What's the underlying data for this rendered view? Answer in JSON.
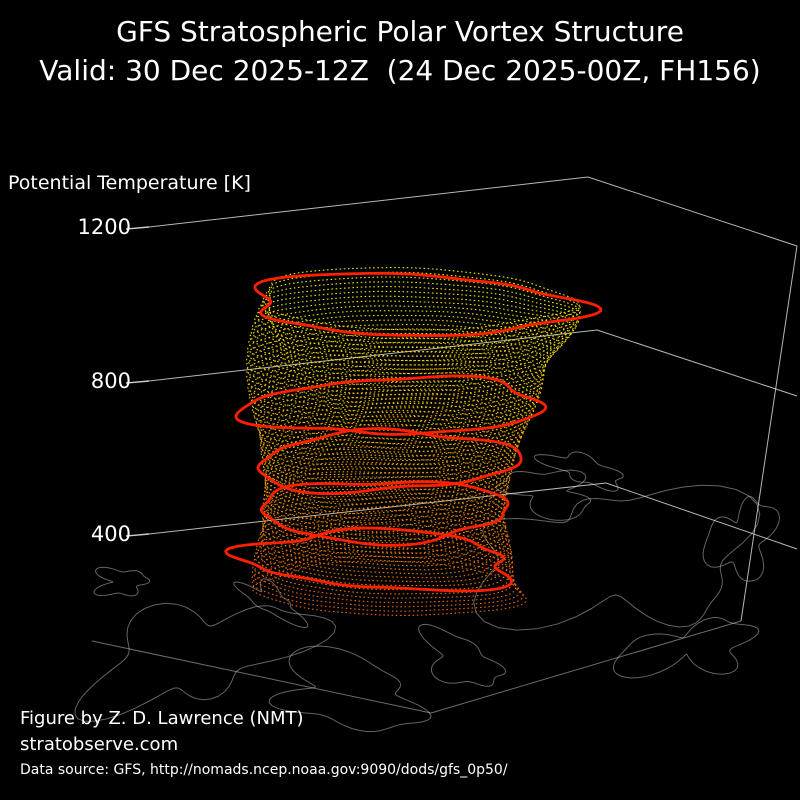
{
  "title": {
    "line1": "GFS Stratospheric Polar Vortex Structure",
    "line2": "Valid: 30 Dec 2025-12Z  (24 Dec 2025-00Z, FH156)"
  },
  "axis": {
    "label": "Potential Temperature [K]",
    "ticks": [
      "1200",
      "800",
      "400"
    ]
  },
  "credits": {
    "figure_by": "Figure by Z. D. Lawrence (NMT)",
    "site": "stratobserve.com",
    "data_source": "Data source: GFS, http://nomads.ncep.noaa.gov:9090/dods/gfs_0p50/"
  },
  "chart_data": {
    "type": "scatter",
    "title": "GFS Stratospheric Polar Vortex Structure",
    "subtitle": "Valid: 30 Dec 2025-12Z  (24 Dec 2025-00Z, FH156)",
    "zlabel": "Potential Temperature [K]",
    "z_ticks": [
      400,
      800,
      1200
    ],
    "z_extent_K_approx": [
      350,
      1250
    ],
    "n_contour_levels_approx": 66,
    "highlighted_levels_fraction_from_top": [
      0.02,
      0.37,
      0.56,
      0.73,
      0.9
    ],
    "colors": {
      "upper_levels": "#f2e600",
      "mid_levels": "#ffaa00",
      "lower_levels": "#ff7000",
      "highlight_contours": "#ff2000",
      "map_outline": "#b5b5b5",
      "axis_lines": "#d8d8d8",
      "background": "#000000",
      "text": "#ffffff"
    },
    "grid": "z gridlines at 400, 800, 1200 K on back panes",
    "legend": "none",
    "basemap": "Northern Hemisphere polar stereographic coastlines under vortex",
    "description": "3D stack of dotted polar-vortex edge contours per potential temperature level, yellow at upper levels grading to orange at lower levels, with thick red highlighted contours at selected levels"
  }
}
